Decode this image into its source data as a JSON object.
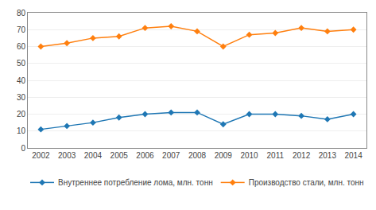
{
  "chart_data": {
    "type": "line",
    "x": [
      2002,
      2003,
      2004,
      2005,
      2006,
      2007,
      2008,
      2009,
      2010,
      2011,
      2012,
      2013,
      2014
    ],
    "series": [
      {
        "name": "Внутреннее потребление лома, млн. тонн",
        "values": [
          11,
          13,
          15,
          18,
          20,
          21,
          21,
          14,
          20,
          20,
          19,
          17,
          20
        ]
      },
      {
        "name": "Производство стали, млн. тонн",
        "values": [
          60,
          62,
          65,
          66,
          71,
          72,
          69,
          60,
          67,
          68,
          71,
          69,
          70
        ]
      }
    ],
    "marker": "diamond",
    "xlim": [
      2001.5,
      2014.5
    ],
    "xticks": [
      2002,
      2003,
      2004,
      2005,
      2006,
      2007,
      2008,
      2009,
      2010,
      2011,
      2012,
      2013,
      2014
    ],
    "ylim": [
      0,
      80
    ],
    "yticks": [
      0,
      10,
      20,
      30,
      40,
      50,
      60,
      70,
      80
    ],
    "grid": true,
    "legend": "bottom"
  }
}
